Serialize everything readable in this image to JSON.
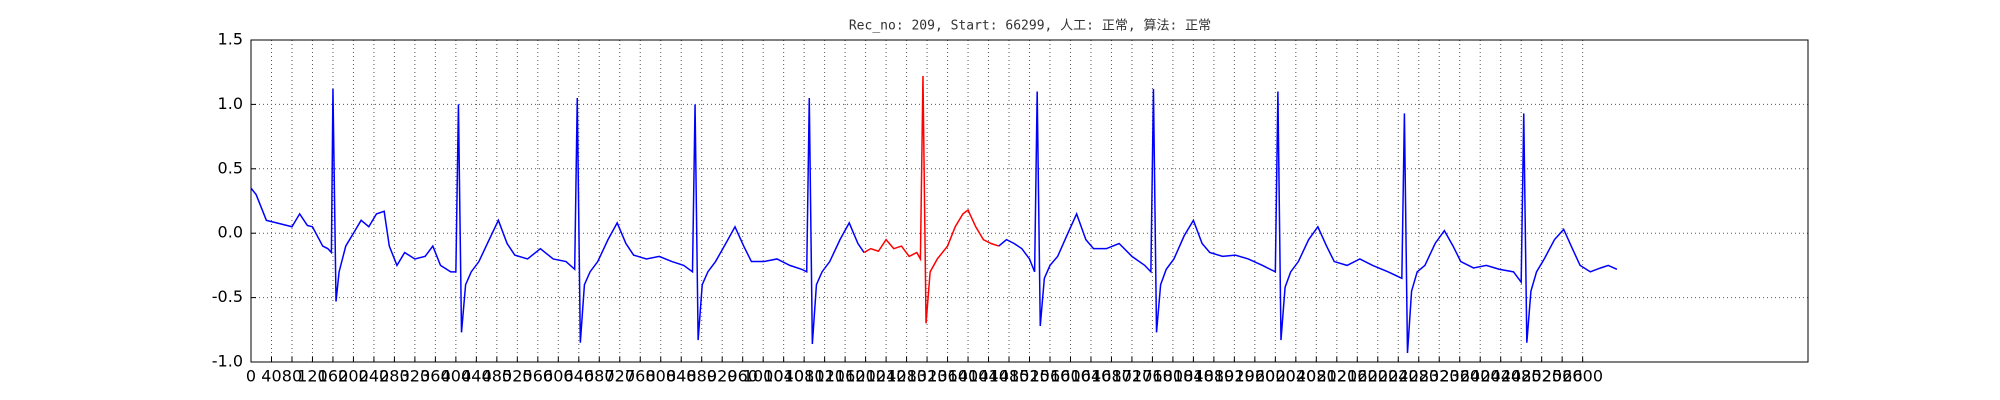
{
  "chart_data": {
    "type": "line",
    "title": "Rec_no: 209, Start: 66299, 人工: 正常, 算法: 正常",
    "xlim": [
      0,
      3040
    ],
    "ylim": [
      -1,
      1.5
    ],
    "xticks": [
      0,
      40,
      80,
      120,
      160,
      200,
      240,
      280,
      320,
      360,
      400,
      440,
      480,
      520,
      560,
      600,
      640,
      680,
      720,
      760,
      800,
      840,
      880,
      920,
      960,
      1000,
      1040,
      1080,
      1120,
      1160,
      1200,
      1240,
      1280,
      1320,
      1360,
      1400,
      1440,
      1480,
      1520,
      1560,
      1600,
      1640,
      1680,
      1720,
      1760,
      1800,
      1840,
      1880,
      1920,
      1960,
      2000,
      2040,
      2080,
      2120,
      2160,
      2200,
      2240,
      2280,
      2320,
      2360,
      2400,
      2440,
      2480,
      2520,
      2560,
      2600
    ],
    "yticks": [
      {
        "value": -1,
        "label": "-1.0"
      },
      -0.5,
      {
        "value": 0,
        "label": "0.0"
      },
      0.5,
      {
        "value": 1,
        "label": "1.0"
      },
      1.5
    ],
    "grid": true,
    "series": [
      {
        "color": "#0000ff",
        "x": [
          0,
          10,
          30,
          50,
          80,
          95,
          110,
          120,
          140,
          150,
          157,
          160,
          166,
          172,
          185,
          200,
          215,
          230,
          245,
          260,
          270,
          285,
          300,
          320,
          340,
          355,
          370,
          390,
          400,
          405,
          411,
          419,
          430,
          445,
          465,
          483,
          500,
          515,
          540,
          565,
          590,
          615,
          632,
          637,
          643,
          651,
          662,
          677,
          697,
          715,
          732,
          747,
          772,
          797,
          822,
          845,
          862,
          867,
          873,
          881,
          892,
          907,
          927,
          945,
          962,
          977,
          1002,
          1027,
          1052,
          1075,
          1085,
          1090,
          1096,
          1104,
          1115,
          1130,
          1150,
          1168,
          1185,
          1197
        ],
        "values": [
          0.35,
          0.3,
          0.1,
          0.08,
          0.05,
          0.15,
          0.06,
          0.05,
          -0.1,
          -0.12,
          -0.15,
          1.12,
          -0.53,
          -0.3,
          -0.1,
          0,
          0.1,
          0.05,
          0.15,
          0.17,
          -0.1,
          -0.25,
          -0.15,
          -0.2,
          -0.18,
          -0.1,
          -0.25,
          -0.3,
          -0.3,
          1.0,
          -0.77,
          -0.4,
          -0.3,
          -0.22,
          -0.05,
          0.1,
          -0.08,
          -0.17,
          -0.2,
          -0.12,
          -0.2,
          -0.22,
          -0.28,
          1.05,
          -0.85,
          -0.4,
          -0.3,
          -0.22,
          -0.05,
          0.08,
          -0.08,
          -0.17,
          -0.2,
          -0.18,
          -0.22,
          -0.25,
          -0.3,
          1.0,
          -0.83,
          -0.4,
          -0.3,
          -0.22,
          -0.08,
          0.05,
          -0.1,
          -0.22,
          -0.22,
          -0.2,
          -0.25,
          -0.28,
          -0.3,
          1.05,
          -0.86,
          -0.4,
          -0.3,
          -0.22,
          -0.05,
          0.08,
          -0.08,
          -0.15
        ]
      },
      {
        "color": "#ff0000",
        "x": [
          1197,
          1210,
          1225,
          1240,
          1255,
          1270,
          1285,
          1300,
          1307,
          1312,
          1318,
          1326,
          1340,
          1360,
          1375,
          1390,
          1400,
          1415,
          1430,
          1445,
          1460
        ],
        "values": [
          -0.15,
          -0.12,
          -0.14,
          -0.05,
          -0.12,
          -0.1,
          -0.18,
          -0.15,
          -0.2,
          1.22,
          -0.7,
          -0.3,
          -0.2,
          -0.1,
          0.05,
          0.15,
          0.18,
          0.05,
          -0.05,
          -0.08,
          -0.1
        ]
      },
      {
        "color": "#0000ff",
        "x": [
          1460,
          1475,
          1490,
          1505,
          1520,
          1530,
          1535,
          1541,
          1549,
          1560,
          1575,
          1595,
          1612,
          1630,
          1645,
          1670,
          1695,
          1720,
          1745,
          1757,
          1762,
          1768,
          1776,
          1787,
          1802,
          1822,
          1840,
          1857,
          1872,
          1897,
          1922,
          1947,
          1975,
          2000,
          2005,
          2011,
          2019,
          2030,
          2045,
          2065,
          2083,
          2100,
          2115,
          2140,
          2165,
          2190,
          2220,
          2247,
          2252,
          2258,
          2266,
          2277,
          2292,
          2312,
          2330,
          2347,
          2362,
          2387,
          2412,
          2437,
          2465,
          2480,
          2485,
          2491,
          2499,
          2510,
          2525,
          2545,
          2563,
          2580,
          2595,
          2615,
          2635,
          2650,
          2667
        ],
        "values": [
          -0.1,
          -0.05,
          -0.08,
          -0.12,
          -0.2,
          -0.3,
          1.1,
          -0.72,
          -0.35,
          -0.25,
          -0.18,
          0,
          0.15,
          -0.05,
          -0.12,
          -0.12,
          -0.08,
          -0.18,
          -0.25,
          -0.3,
          1.12,
          -0.77,
          -0.4,
          -0.28,
          -0.2,
          -0.02,
          0.1,
          -0.08,
          -0.15,
          -0.18,
          -0.17,
          -0.2,
          -0.25,
          -0.3,
          1.1,
          -0.83,
          -0.42,
          -0.3,
          -0.22,
          -0.05,
          0.05,
          -0.1,
          -0.22,
          -0.25,
          -0.2,
          -0.25,
          -0.3,
          -0.35,
          0.93,
          -0.93,
          -0.45,
          -0.3,
          -0.25,
          -0.08,
          0.02,
          -0.1,
          -0.22,
          -0.27,
          -0.25,
          -0.28,
          -0.3,
          -0.38,
          0.93,
          -0.85,
          -0.45,
          -0.3,
          -0.2,
          -0.05,
          0.03,
          -0.12,
          -0.25,
          -0.3,
          -0.27,
          -0.25,
          -0.28
        ]
      }
    ]
  }
}
